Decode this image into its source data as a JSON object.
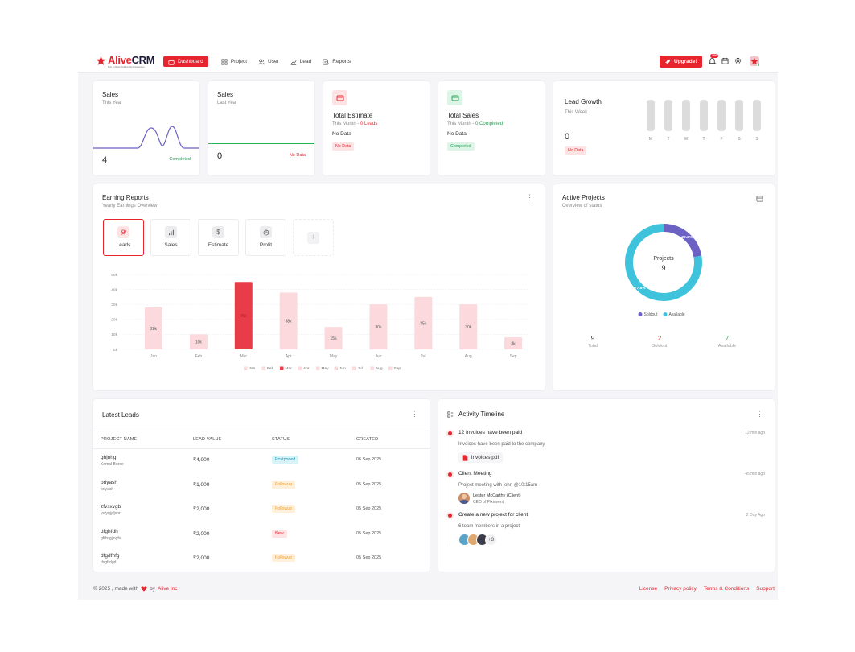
{
  "brand": {
    "name_part1": "Alive",
    "name_part2": "CRM",
    "tagline": "Best for Better Relationship Management"
  },
  "nav": [
    {
      "label": "Dashboard",
      "icon": "briefcase-icon",
      "active": true
    },
    {
      "label": "Project",
      "icon": "grid-icon"
    },
    {
      "label": "User",
      "icon": "users-icon"
    },
    {
      "label": "Lead",
      "icon": "trend-icon"
    },
    {
      "label": "Reports",
      "icon": "report-icon"
    }
  ],
  "header": {
    "upgrade_label": "Upgrade!",
    "notif_count": "100"
  },
  "cards": {
    "sales_year": {
      "title": "Sales",
      "subtitle": "This Year",
      "value": "4",
      "status": "Completed"
    },
    "sales_last": {
      "title": "Sales",
      "subtitle": "Last Year",
      "value": "0",
      "status": "No Data"
    },
    "estimate": {
      "title": "Total Estimate",
      "subtitle": "This Month - ",
      "sub_value": "0 Leads",
      "value": "No Data",
      "status": "No Data"
    },
    "total_sales": {
      "title": "Total Sales",
      "subtitle": "This Month - ",
      "sub_value": "0 Completed",
      "value": "No Data",
      "status": "Completed"
    },
    "lead_growth": {
      "title": "Lead Growth",
      "subtitle": "This Week",
      "value": "0",
      "status": "No Data",
      "days": [
        "M",
        "T",
        "W",
        "T",
        "F",
        "S",
        "S"
      ]
    }
  },
  "earning": {
    "title": "Earning Reports",
    "subtitle": "Yearly Earnings Overview",
    "tabs": [
      {
        "label": "Leads",
        "icon": "users-icon",
        "active": true
      },
      {
        "label": "Sales",
        "icon": "bar-chart-icon"
      },
      {
        "label": "Estimate",
        "icon": "dollar-icon"
      },
      {
        "label": "Profit",
        "icon": "pie-icon"
      }
    ],
    "add_label": "+"
  },
  "chart_data": [
    {
      "type": "bar",
      "categories": [
        "Jan",
        "Feb",
        "Mar",
        "Apr",
        "May",
        "Jun",
        "Jul",
        "Aug",
        "Sep"
      ],
      "values": [
        28,
        10,
        45,
        38,
        15,
        30,
        35,
        30,
        8
      ],
      "data_labels": [
        "28k",
        "10k",
        "45k",
        "38k",
        "15k",
        "30k",
        "35k",
        "30k",
        "8k"
      ],
      "y_ticks": [
        "0k",
        "10k",
        "20k",
        "30k",
        "40k",
        "50k"
      ],
      "ylim": [
        0,
        50
      ],
      "highlight_index": 2,
      "colors": {
        "normal": "#fbd9dc",
        "highlight": "#e83d48"
      },
      "legend": [
        "Jan",
        "Feb",
        "Mar",
        "Apr",
        "May",
        "Jun",
        "Jul",
        "Aug",
        "Sep"
      ],
      "grid": true,
      "legend_position": "bottom"
    },
    {
      "type": "pie",
      "center_title": "Projects",
      "center_value": "9",
      "slices": [
        {
          "name": "Soldout",
          "value": 22.2,
          "label": "22.2%",
          "color": "#6b62c4"
        },
        {
          "name": "Available",
          "value": 77.8,
          "label": "77.8%",
          "color": "#3fc3dd"
        }
      ],
      "legend_position": "bottom"
    }
  ],
  "active_projects": {
    "title": "Active Projects",
    "subtitle": "Overview of status",
    "stats": [
      {
        "value": "9",
        "label": "Total",
        "color": "#555"
      },
      {
        "value": "2",
        "label": "Soldout",
        "color": "#e6252f"
      },
      {
        "value": "7",
        "label": "Available",
        "color": "#2b9e57"
      }
    ]
  },
  "leads": {
    "title": "Latest Leads",
    "columns": [
      "PROJECT NAME",
      "LEAD VALUE",
      "STATUS",
      "CREATED"
    ],
    "rows": [
      {
        "name": "ghjnhg",
        "owner": "Komal Borse",
        "value": "₹4,000",
        "status": "Postponed",
        "status_class": "cyan",
        "created": "06 Sep 2025"
      },
      {
        "name": "priyash",
        "owner": "priyash",
        "value": "₹1,000",
        "status": "Followup",
        "status_class": "orange",
        "created": "05 Sep 2025"
      },
      {
        "name": "zfvsxvgb",
        "owner": "ysfyujyfjshr",
        "value": "₹2,000",
        "status": "Followup",
        "status_class": "orange",
        "created": "05 Sep 2025"
      },
      {
        "name": "dfghfdh",
        "owner": "gfdsfgjjngfv",
        "value": "₹2,000",
        "status": "New",
        "status_class": "red",
        "created": "05 Sep 2025"
      },
      {
        "name": "dfgdfhfg",
        "owner": "dsgfrdgd",
        "value": "₹2,000",
        "status": "Followup",
        "status_class": "orange",
        "created": "05 Sep 2025"
      }
    ]
  },
  "timeline": {
    "title": "Activity Timeline",
    "items": [
      {
        "title": "12 Invoices have been paid",
        "time": "12 min ago",
        "desc": "Invoices have been paid to the company",
        "file": "invoices.pdf"
      },
      {
        "title": "Client Meeting",
        "time": "45 min ago",
        "desc": "Project meeting with john @10:15am",
        "person": "Lester McCarthy (Client)",
        "role": "CEO of Pixinvent"
      },
      {
        "title": "Create a new project for client",
        "time": "2 Day Ago",
        "desc": "6 team members in a project",
        "more": "+3"
      }
    ]
  },
  "footer": {
    "copyright": "© 2025 , made with",
    "by": "by",
    "company": "Alive Inc",
    "links": [
      "License",
      "Privacy policy",
      "Terms & Conditions",
      "Support"
    ]
  }
}
